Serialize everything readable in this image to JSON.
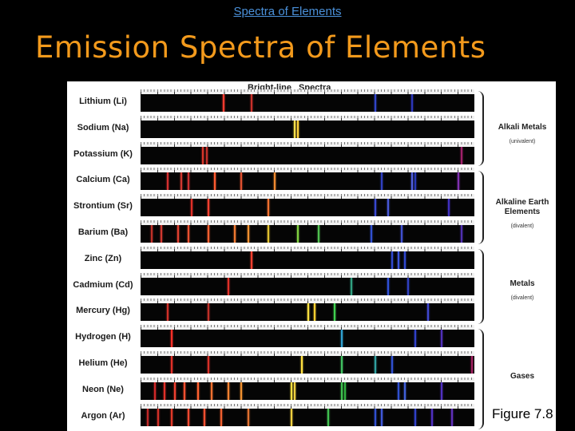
{
  "header": {
    "link_text": "Spectra of Elements",
    "title": "Emission Spectra of Elements"
  },
  "figure": {
    "heading": "Bright-line Spectra",
    "caption": "Figure 7.8"
  },
  "groups": [
    {
      "name": "Alkali Metals",
      "sub": "(univalent)"
    },
    {
      "name": "Alkaline Earth Elements",
      "sub": "(divalent)"
    },
    {
      "name": "Metals",
      "sub": "(divalent)"
    },
    {
      "name": "Gases",
      "sub": ""
    }
  ],
  "elements": [
    {
      "label": "Lithium (Li)",
      "lines": [
        {
          "p": 0.246,
          "c": "#ff3b2e"
        },
        {
          "p": 0.33,
          "c": "#c9302a"
        },
        {
          "p": 0.7,
          "c": "#3044c8"
        },
        {
          "p": 0.81,
          "c": "#2c36b8"
        }
      ]
    },
    {
      "label": "Sodium (Na)",
      "lines": [
        {
          "p": 0.46,
          "c": "#ffe04a"
        },
        {
          "p": 0.47,
          "c": "#ffd23a"
        }
      ]
    },
    {
      "label": "Potassium (K)",
      "lines": [
        {
          "p": 0.185,
          "c": "#d9362a"
        },
        {
          "p": 0.197,
          "c": "#c4302a"
        },
        {
          "p": 0.96,
          "c": "#a0206a"
        }
      ]
    },
    {
      "label": "Calcium (Ca)",
      "lines": [
        {
          "p": 0.08,
          "c": "#d43030"
        },
        {
          "p": 0.12,
          "c": "#d03830"
        },
        {
          "p": 0.14,
          "c": "#c83030"
        },
        {
          "p": 0.22,
          "c": "#ff5a30"
        },
        {
          "p": 0.3,
          "c": "#e05030"
        },
        {
          "p": 0.4,
          "c": "#f08a30"
        },
        {
          "p": 0.72,
          "c": "#3040c0"
        },
        {
          "p": 0.81,
          "c": "#5060e0"
        },
        {
          "p": 0.82,
          "c": "#2838b8"
        },
        {
          "p": 0.95,
          "c": "#8030b0"
        }
      ]
    },
    {
      "label": "Strontium (Sr)",
      "lines": [
        {
          "p": 0.15,
          "c": "#e03028"
        },
        {
          "p": 0.2,
          "c": "#ff4030"
        },
        {
          "p": 0.38,
          "c": "#f07030"
        },
        {
          "p": 0.7,
          "c": "#3848d0"
        },
        {
          "p": 0.74,
          "c": "#4858d8"
        },
        {
          "p": 0.92,
          "c": "#4030c0"
        }
      ]
    },
    {
      "label": "Barium (Ba)",
      "lines": [
        {
          "p": 0.03,
          "c": "#c03028"
        },
        {
          "p": 0.06,
          "c": "#d03830"
        },
        {
          "p": 0.11,
          "c": "#e04030"
        },
        {
          "p": 0.14,
          "c": "#e85030"
        },
        {
          "p": 0.2,
          "c": "#ff6030"
        },
        {
          "p": 0.28,
          "c": "#f07830"
        },
        {
          "p": 0.32,
          "c": "#f09030"
        },
        {
          "p": 0.38,
          "c": "#e0c030"
        },
        {
          "p": 0.47,
          "c": "#80d040"
        },
        {
          "p": 0.53,
          "c": "#50c050"
        },
        {
          "p": 0.69,
          "c": "#3050d0"
        },
        {
          "p": 0.78,
          "c": "#4050d0"
        },
        {
          "p": 0.96,
          "c": "#5030b0"
        }
      ]
    },
    {
      "label": "Zinc (Zn)",
      "lines": [
        {
          "p": 0.33,
          "c": "#ff4030"
        },
        {
          "p": 0.75,
          "c": "#3048d0"
        },
        {
          "p": 0.77,
          "c": "#3c54dc"
        },
        {
          "p": 0.79,
          "c": "#3048d0"
        }
      ]
    },
    {
      "label": "Cadmium (Cd)",
      "lines": [
        {
          "p": 0.26,
          "c": "#e03028"
        },
        {
          "p": 0.63,
          "c": "#30a080"
        },
        {
          "p": 0.74,
          "c": "#3050d8"
        },
        {
          "p": 0.8,
          "c": "#3040c0"
        }
      ]
    },
    {
      "label": "Mercury (Hg)",
      "lines": [
        {
          "p": 0.08,
          "c": "#d03028"
        },
        {
          "p": 0.2,
          "c": "#c03028"
        },
        {
          "p": 0.5,
          "c": "#ffe040"
        },
        {
          "p": 0.52,
          "c": "#ffd030"
        },
        {
          "p": 0.58,
          "c": "#40d050"
        },
        {
          "p": 0.86,
          "c": "#4048d0"
        }
      ]
    },
    {
      "label": "Hydrogen (H)",
      "lines": [
        {
          "p": 0.09,
          "c": "#ff3028"
        },
        {
          "p": 0.6,
          "c": "#30a0d0"
        },
        {
          "p": 0.82,
          "c": "#3040c8"
        },
        {
          "p": 0.9,
          "c": "#5030b8"
        }
      ]
    },
    {
      "label": "Helium (He)",
      "lines": [
        {
          "p": 0.09,
          "c": "#e03028"
        },
        {
          "p": 0.2,
          "c": "#d83028"
        },
        {
          "p": 0.48,
          "c": "#ffe040"
        },
        {
          "p": 0.6,
          "c": "#40c060"
        },
        {
          "p": 0.7,
          "c": "#30a0a0"
        },
        {
          "p": 0.75,
          "c": "#3050d0"
        },
        {
          "p": 0.99,
          "c": "#a02060"
        }
      ]
    },
    {
      "label": "Neon (Ne)",
      "lines": [
        {
          "p": 0.04,
          "c": "#d02828"
        },
        {
          "p": 0.07,
          "c": "#e03028"
        },
        {
          "p": 0.1,
          "c": "#f04030"
        },
        {
          "p": 0.13,
          "c": "#ff5030"
        },
        {
          "p": 0.17,
          "c": "#ff6030"
        },
        {
          "p": 0.21,
          "c": "#f07030"
        },
        {
          "p": 0.26,
          "c": "#f08030"
        },
        {
          "p": 0.3,
          "c": "#f09030"
        },
        {
          "p": 0.45,
          "c": "#ffe040"
        },
        {
          "p": 0.46,
          "c": "#f0d040"
        },
        {
          "p": 0.6,
          "c": "#40c050"
        },
        {
          "p": 0.61,
          "c": "#30b040"
        },
        {
          "p": 0.77,
          "c": "#3050d0"
        },
        {
          "p": 0.79,
          "c": "#4060d8"
        },
        {
          "p": 0.9,
          "c": "#5030c0"
        }
      ]
    },
    {
      "label": "Argon (Ar)",
      "lines": [
        {
          "p": 0.02,
          "c": "#c02828"
        },
        {
          "p": 0.05,
          "c": "#d03028"
        },
        {
          "p": 0.09,
          "c": "#e03828"
        },
        {
          "p": 0.14,
          "c": "#f04830"
        },
        {
          "p": 0.19,
          "c": "#ff5030"
        },
        {
          "p": 0.24,
          "c": "#f06030"
        },
        {
          "p": 0.32,
          "c": "#e07030"
        },
        {
          "p": 0.45,
          "c": "#f0d040"
        },
        {
          "p": 0.56,
          "c": "#40c050"
        },
        {
          "p": 0.7,
          "c": "#3050d0"
        },
        {
          "p": 0.72,
          "c": "#4058d8"
        },
        {
          "p": 0.82,
          "c": "#3040c8"
        },
        {
          "p": 0.87,
          "c": "#5030c0"
        },
        {
          "p": 0.93,
          "c": "#6030b8"
        }
      ]
    }
  ]
}
